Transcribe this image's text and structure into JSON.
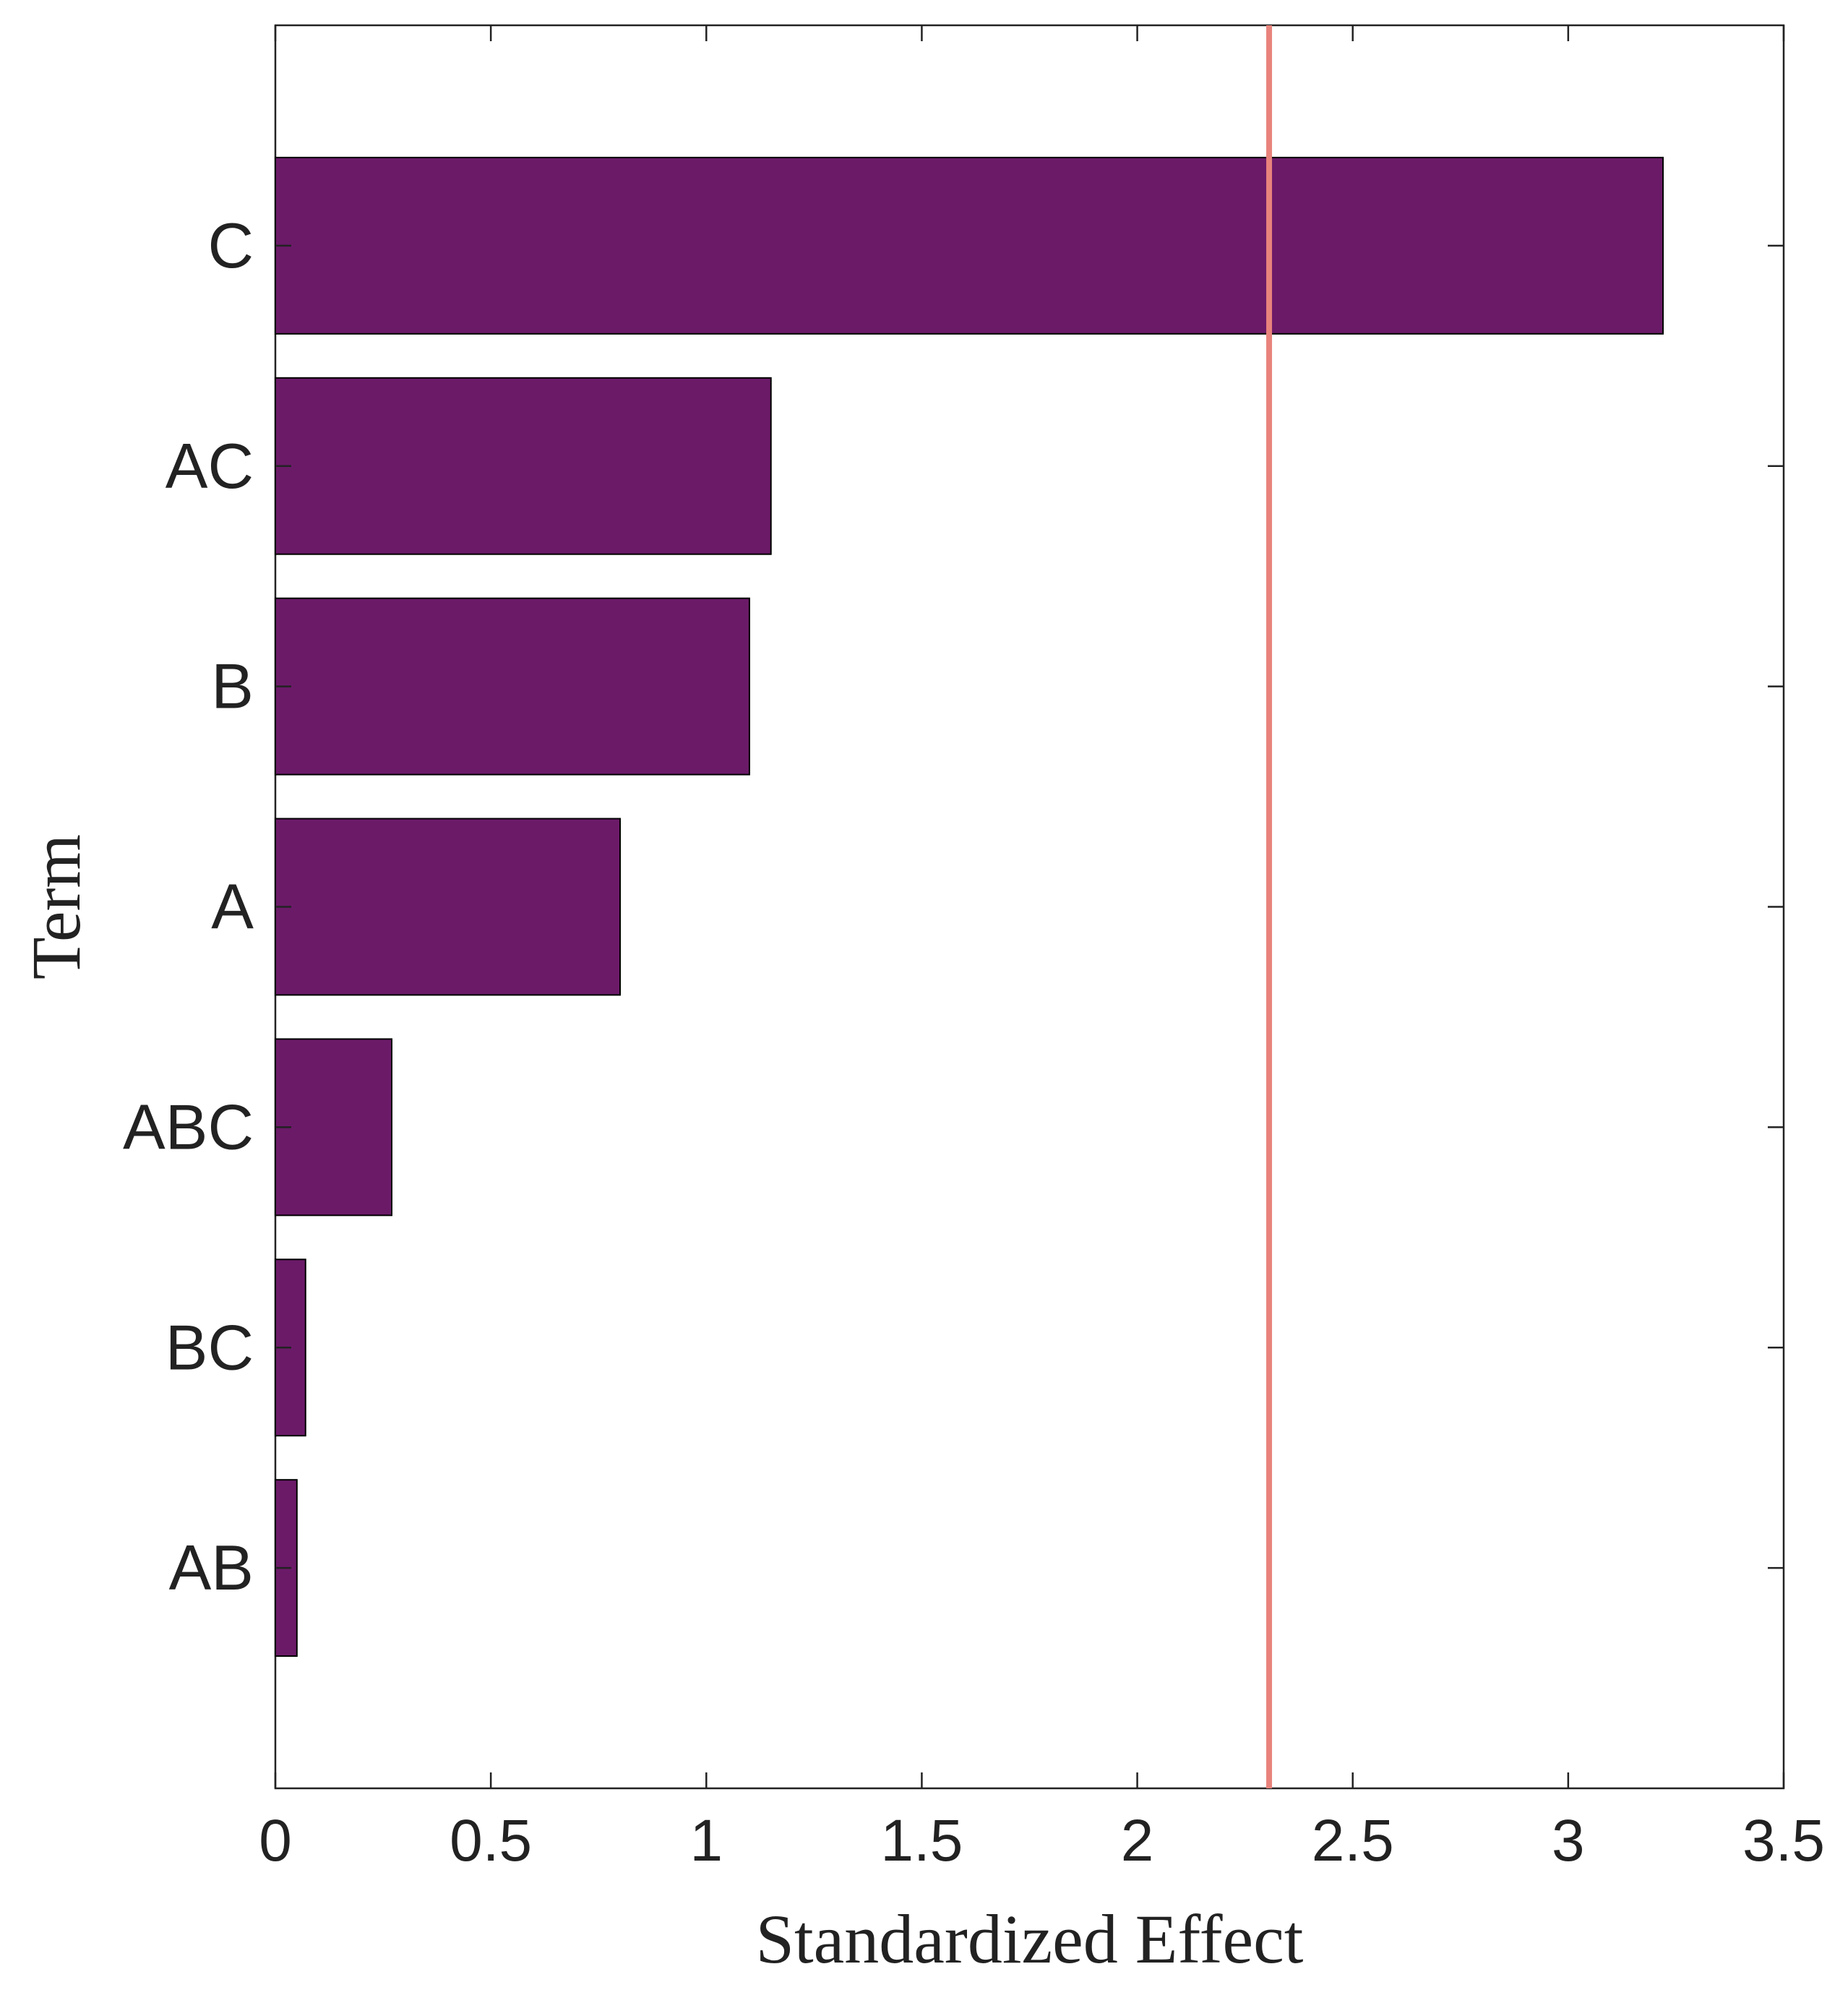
{
  "chart_data": {
    "type": "bar",
    "orientation": "horizontal",
    "categories": [
      "C",
      "AC",
      "B",
      "A",
      "ABC",
      "BC",
      "AB"
    ],
    "values": [
      3.22,
      1.15,
      1.1,
      0.8,
      0.27,
      0.07,
      0.05
    ],
    "xlabel": "Standardized Effect",
    "ylabel": "Term",
    "xlim": [
      0,
      3.5
    ],
    "x_ticks": [
      0,
      0.5,
      1,
      1.5,
      2,
      2.5,
      3,
      3.5
    ],
    "x_tick_labels": [
      "0",
      "0.5",
      "1",
      "1.5",
      "2",
      "2.5",
      "3",
      "3.5"
    ],
    "reference_line": {
      "x": 2.306
    },
    "grid": false,
    "legend": "none",
    "colors": {
      "bar": "#6b1a68",
      "bar_edge": "#000000",
      "reference_line": "#e8837c",
      "axis": "#222222"
    }
  }
}
